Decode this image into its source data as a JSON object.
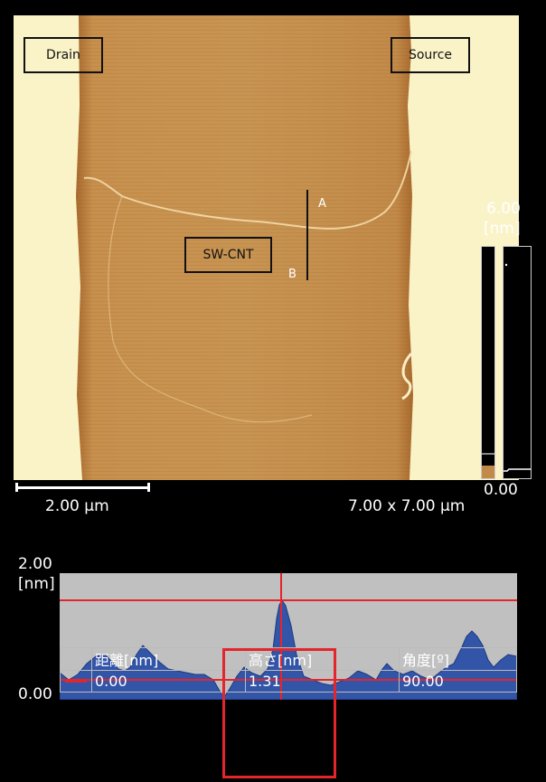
{
  "image": {
    "labels": {
      "drain": "Drain",
      "source": "Source",
      "nanotube": "SW-CNT",
      "point_a": "A",
      "point_b": "B"
    },
    "height_scale": {
      "max": "6.00",
      "unit": "[nm]",
      "min": "0.00"
    },
    "scale_bar_label": "2.00 μm",
    "image_size": "7.00 x 7.00 μm"
  },
  "profile": {
    "y_max": "2.00",
    "y_unit": "[nm]",
    "y_min": "0.00"
  },
  "table": {
    "headers": [
      "距離[nm]",
      "高さ[nm]",
      "角度[º]"
    ],
    "row": [
      "0.00",
      "1.31",
      "90.00"
    ]
  },
  "colors": {
    "highlight": "#e4252b",
    "profile_fill": "#3355a8",
    "electrode": "#fbf3c8",
    "substrate": "#c7904d"
  }
}
